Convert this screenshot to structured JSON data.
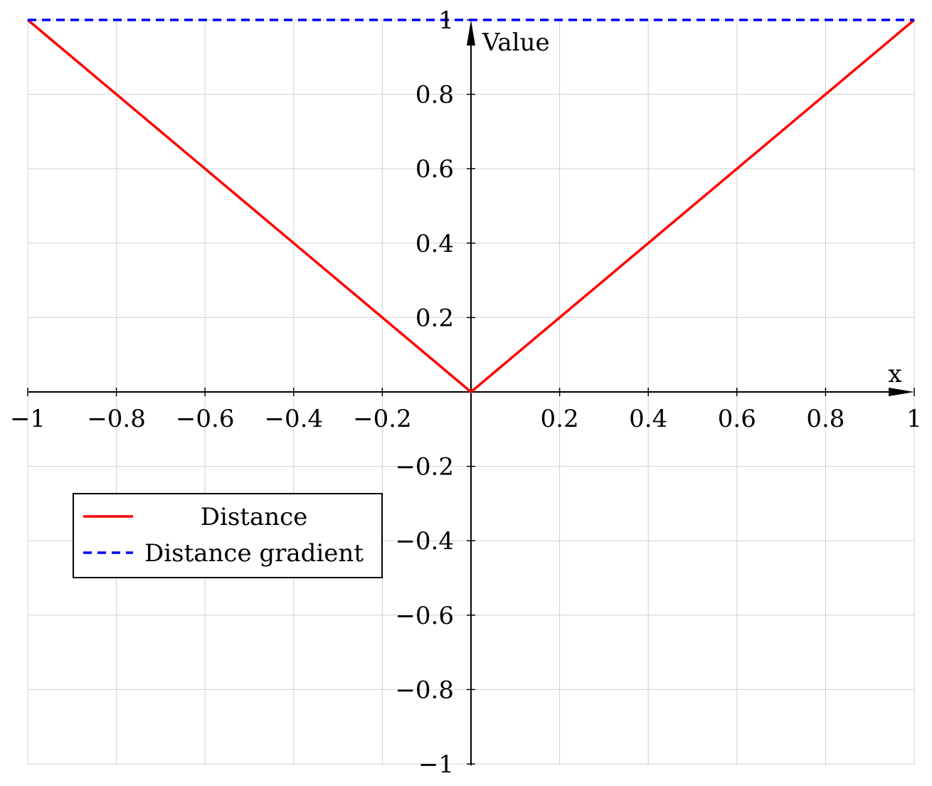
{
  "chart_data": {
    "type": "line",
    "title": "",
    "xlabel": "x",
    "ylabel": "Value",
    "xlim": [
      -1,
      1
    ],
    "ylim": [
      -1,
      1
    ],
    "grid": true,
    "legend_position": "left",
    "x_ticks": [
      -1,
      -0.8,
      -0.6,
      -0.4,
      -0.2,
      0.2,
      0.4,
      0.6,
      0.8,
      1
    ],
    "x_tick_labels": [
      "−1",
      "−0.8",
      "−0.6",
      "−0.4",
      "−0.2",
      "0.2",
      "0.4",
      "0.6",
      "0.8",
      "1"
    ],
    "y_ticks": [
      1,
      0.8,
      0.6,
      0.4,
      0.2,
      -0.2,
      -0.4,
      -0.6,
      -0.8,
      -1
    ],
    "y_tick_labels": [
      "1",
      "0.8",
      "0.6",
      "0.4",
      "0.2",
      "−0.2",
      "−0.4",
      "−0.6",
      "−0.8",
      "−1"
    ],
    "series": [
      {
        "name": "Distance",
        "color": "#ff0000",
        "style": "solid",
        "x": [
          -1,
          0,
          1
        ],
        "y": [
          1,
          0,
          1
        ]
      },
      {
        "name": "Distance gradient",
        "color": "#0000ff",
        "style": "dashed",
        "x": [
          -1,
          1
        ],
        "y": [
          1,
          1
        ]
      }
    ]
  }
}
